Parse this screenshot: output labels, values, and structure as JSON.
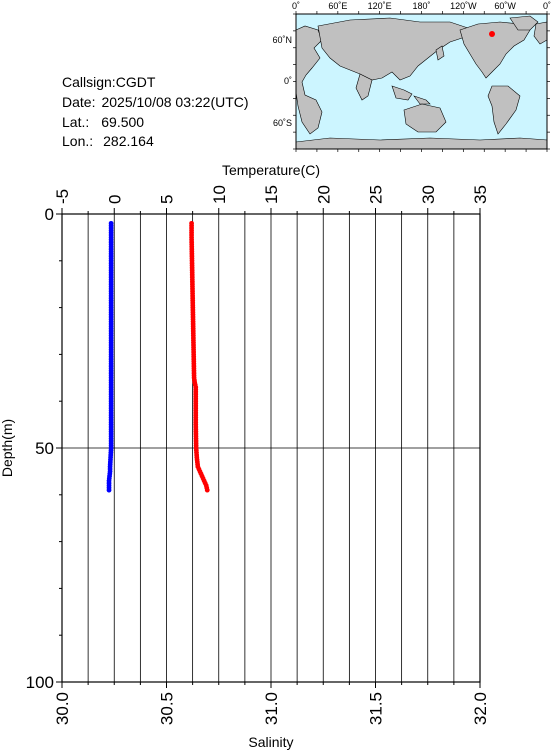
{
  "station": {
    "callsign_label": "Callsign:",
    "callsign": "CGDT",
    "date_label": "Date:",
    "date": "2025/10/08 03:22(UTC)",
    "lat_label": "Lat.:",
    "lat": "69.500",
    "lon_label": "Lon.:",
    "lon": "282.164"
  },
  "map": {
    "top_labels": [
      "0˚",
      "60˚E",
      "120˚E",
      "180˚",
      "120˚W",
      "60˚W",
      "0˚"
    ],
    "left_labels": [
      "60˚N",
      "0˚",
      "60˚S"
    ],
    "station_marker_color": "#ff0000",
    "ocean_color": "#ccf5ff",
    "land_color": "#c0c0c0"
  },
  "chart_data": {
    "type": "scatter",
    "title": "",
    "top_axis": {
      "label": "Temperature(C)",
      "range": [
        -5,
        35
      ],
      "ticks": [
        "-5",
        "0",
        "5",
        "10",
        "15",
        "20",
        "25",
        "30",
        "35"
      ]
    },
    "bottom_axis": {
      "label": "Salinity",
      "range": [
        30.0,
        32.0
      ],
      "ticks": [
        "30.0",
        "30.5",
        "31.0",
        "31.5",
        "32.0"
      ]
    },
    "left_axis": {
      "label": "Depth(m)",
      "range": [
        0,
        100
      ],
      "inverted": true,
      "ticks": [
        "0",
        "50",
        "100"
      ]
    },
    "grid": true,
    "series": [
      {
        "name": "",
        "variable": "temperature",
        "axis": "top",
        "color": "#0000ff",
        "depth": [
          2,
          5,
          10,
          15,
          20,
          25,
          30,
          35,
          40,
          45,
          50,
          52,
          54,
          55,
          56,
          57,
          58,
          59
        ],
        "values": [
          -0.3,
          -0.3,
          -0.3,
          -0.3,
          -0.3,
          -0.3,
          -0.3,
          -0.3,
          -0.3,
          -0.3,
          -0.3,
          -0.35,
          -0.4,
          -0.4,
          -0.45,
          -0.5,
          -0.5,
          -0.5
        ]
      },
      {
        "name": "",
        "variable": "salinity",
        "axis": "bottom",
        "color": "#ff0000",
        "depth": [
          2,
          5,
          10,
          15,
          20,
          25,
          30,
          35,
          36,
          37,
          40,
          45,
          50,
          52,
          54,
          55,
          56,
          57,
          58,
          59
        ],
        "values": [
          30.62,
          30.62,
          30.622,
          30.624,
          30.626,
          30.628,
          30.63,
          30.632,
          30.635,
          30.64,
          30.64,
          30.64,
          30.642,
          30.645,
          30.65,
          30.66,
          30.67,
          30.68,
          30.69,
          30.695
        ]
      }
    ]
  }
}
